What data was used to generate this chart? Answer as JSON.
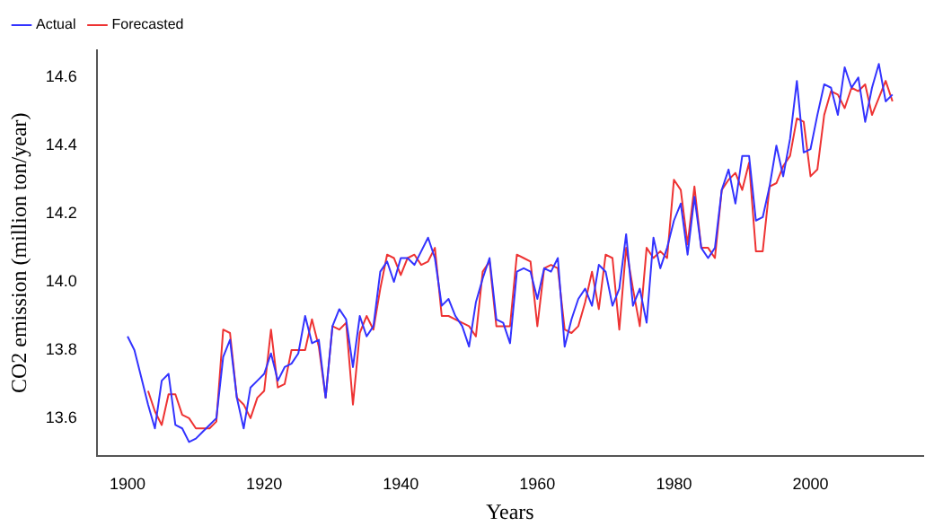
{
  "chart_data": {
    "type": "line",
    "xlabel": "Years",
    "ylabel": "CO2 emission (million ton/year)",
    "xlim": [
      1895.5,
      2016.5
    ],
    "ylim": [
      13.49,
      14.68
    ],
    "xticks": [
      1900,
      1920,
      1940,
      1960,
      1980,
      2000
    ],
    "yticks": [
      13.6,
      13.8,
      {
        "value": 14,
        "label": "14.0"
      },
      14.2,
      14.4,
      14.6
    ],
    "grid": false,
    "legend": "top left",
    "marker": "none",
    "line_style": "solid",
    "series": [
      {
        "name": "Actual",
        "color": "#3333ff",
        "x": [
          1900,
          1901,
          1902,
          1903,
          1904,
          1905,
          1906,
          1907,
          1908,
          1909,
          1910,
          1911,
          1912,
          1913,
          1914,
          1915,
          1916,
          1917,
          1918,
          1919,
          1920,
          1921,
          1922,
          1923,
          1924,
          1925,
          1926,
          1927,
          1928,
          1929,
          1930,
          1931,
          1932,
          1933,
          1934,
          1935,
          1936,
          1937,
          1938,
          1939,
          1940,
          1941,
          1942,
          1943,
          1944,
          1945,
          1946,
          1947,
          1948,
          1949,
          1950,
          1951,
          1952,
          1953,
          1954,
          1955,
          1956,
          1957,
          1958,
          1959,
          1960,
          1961,
          1962,
          1963,
          1964,
          1965,
          1966,
          1967,
          1968,
          1969,
          1970,
          1971,
          1972,
          1973,
          1974,
          1975,
          1976,
          1977,
          1978,
          1979,
          1980,
          1981,
          1982,
          1983,
          1984,
          1985,
          1986,
          1987,
          1988,
          1989,
          1990,
          1991,
          1992,
          1993,
          1994,
          1995,
          1996,
          1997,
          1998,
          1999,
          2000,
          2001,
          2002,
          2003,
          2004,
          2005,
          2006,
          2007,
          2008,
          2009,
          2010,
          2011,
          2012
        ],
        "values": [
          13.84,
          13.8,
          13.72,
          13.64,
          13.57,
          13.71,
          13.73,
          13.58,
          13.57,
          13.53,
          13.54,
          13.56,
          13.58,
          13.6,
          13.78,
          13.83,
          13.66,
          13.57,
          13.69,
          13.71,
          13.73,
          13.79,
          13.71,
          13.75,
          13.76,
          13.79,
          13.9,
          13.82,
          13.83,
          13.66,
          13.87,
          13.92,
          13.89,
          13.75,
          13.9,
          13.84,
          13.87,
          14.03,
          14.06,
          14.0,
          14.07,
          14.07,
          14.05,
          14.09,
          14.13,
          14.07,
          13.93,
          13.95,
          13.9,
          13.87,
          13.81,
          13.94,
          14.01,
          14.07,
          13.89,
          13.88,
          13.82,
          14.03,
          14.04,
          14.03,
          13.95,
          14.04,
          14.03,
          14.07,
          13.81,
          13.89,
          13.95,
          13.98,
          13.93,
          14.05,
          14.03,
          13.93,
          13.98,
          14.14,
          13.93,
          13.98,
          13.88,
          14.13,
          14.04,
          14.1,
          14.18,
          14.23,
          14.08,
          14.25,
          14.1,
          14.07,
          14.1,
          14.27,
          14.33,
          14.23,
          14.37,
          14.37,
          14.18,
          14.19,
          14.28,
          14.4,
          14.31,
          14.42,
          14.59,
          14.38,
          14.39,
          14.49,
          14.58,
          14.57,
          14.49,
          14.63,
          14.57,
          14.6,
          14.47,
          14.57,
          14.64,
          14.53,
          14.55
        ]
      },
      {
        "name": "Forecasted",
        "color": "#ee3333",
        "x": [
          1903,
          1904,
          1905,
          1906,
          1907,
          1908,
          1909,
          1910,
          1911,
          1912,
          1913,
          1914,
          1915,
          1916,
          1917,
          1918,
          1919,
          1920,
          1921,
          1922,
          1923,
          1924,
          1925,
          1926,
          1927,
          1928,
          1929,
          1930,
          1931,
          1932,
          1933,
          1934,
          1935,
          1936,
          1937,
          1938,
          1939,
          1940,
          1941,
          1942,
          1943,
          1944,
          1945,
          1946,
          1947,
          1948,
          1949,
          1950,
          1951,
          1952,
          1953,
          1954,
          1955,
          1956,
          1957,
          1958,
          1959,
          1960,
          1961,
          1962,
          1963,
          1964,
          1965,
          1966,
          1967,
          1968,
          1969,
          1970,
          1971,
          1972,
          1973,
          1974,
          1975,
          1976,
          1977,
          1978,
          1979,
          1980,
          1981,
          1982,
          1983,
          1984,
          1985,
          1986,
          1987,
          1988,
          1989,
          1990,
          1991,
          1992,
          1993,
          1994,
          1995,
          1996,
          1997,
          1998,
          1999,
          2000,
          2001,
          2002,
          2003,
          2004,
          2005,
          2006,
          2007,
          2008,
          2009,
          2010,
          2011,
          2012
        ],
        "values": [
          13.68,
          13.62,
          13.58,
          13.67,
          13.67,
          13.61,
          13.6,
          13.57,
          13.57,
          13.57,
          13.59,
          13.86,
          13.85,
          13.66,
          13.64,
          13.6,
          13.66,
          13.68,
          13.86,
          13.69,
          13.7,
          13.8,
          13.8,
          13.8,
          13.89,
          13.81,
          13.66,
          13.87,
          13.86,
          13.88,
          13.64,
          13.85,
          13.9,
          13.86,
          13.98,
          14.08,
          14.07,
          14.02,
          14.07,
          14.08,
          14.05,
          14.06,
          14.1,
          13.9,
          13.9,
          13.89,
          13.88,
          13.87,
          13.84,
          14.03,
          14.06,
          13.87,
          13.87,
          13.87,
          14.08,
          14.07,
          14.06,
          13.87,
          14.04,
          14.05,
          14.04,
          13.86,
          13.85,
          13.87,
          13.94,
          14.03,
          13.92,
          14.08,
          14.07,
          13.86,
          14.1,
          13.98,
          13.87,
          14.1,
          14.07,
          14.09,
          14.07,
          14.3,
          14.27,
          14.11,
          14.28,
          14.1,
          14.1,
          14.07,
          14.27,
          14.3,
          14.32,
          14.27,
          14.35,
          14.09,
          14.09,
          14.28,
          14.29,
          14.34,
          14.37,
          14.48,
          14.47,
          14.31,
          14.33,
          14.49,
          14.56,
          14.55,
          14.51,
          14.57,
          14.56,
          14.58,
          14.49,
          14.54,
          14.59,
          14.53
        ]
      }
    ]
  }
}
